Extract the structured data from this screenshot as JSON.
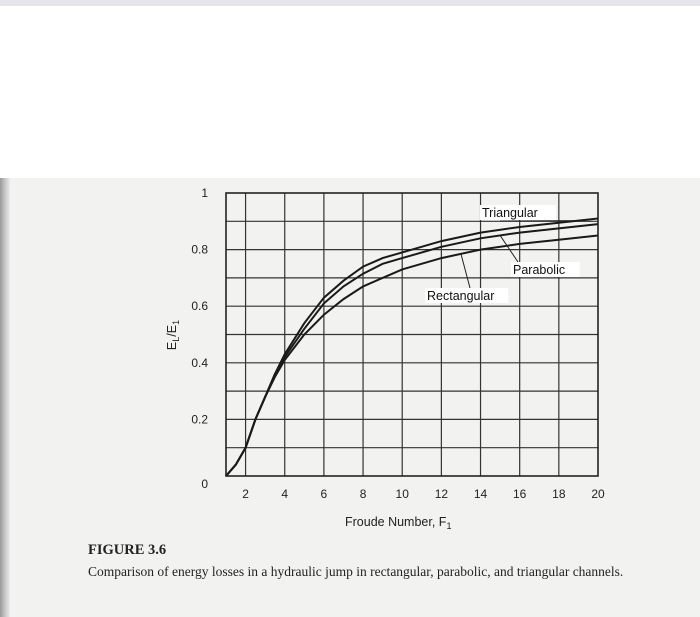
{
  "figure": {
    "number": "FIGURE 3.6",
    "caption": "Comparison of energy losses in a hydraulic jump in rectangular, parabolic, and triangular channels."
  },
  "chart_data": {
    "type": "line",
    "xlabel": "Froude Number, F",
    "xlabel_subscript": "1",
    "ylabel": "E",
    "ylabel_subscript_l": "L",
    "ylabel_slash": "/E",
    "ylabel_subscript_1": "1",
    "xlim": [
      1,
      20
    ],
    "ylim": [
      0,
      1
    ],
    "x_ticks": [
      "2",
      "4",
      "6",
      "8",
      "10",
      "12",
      "14",
      "16",
      "18",
      "20"
    ],
    "y_ticks": [
      "0",
      "0.2",
      "0.4",
      "0.6",
      "0.8",
      "1"
    ],
    "grid": true,
    "series": [
      {
        "name": "Triangular",
        "x": [
          1,
          1.5,
          2,
          2.5,
          3,
          3.5,
          4,
          5,
          6,
          7,
          8,
          9,
          10,
          12,
          14,
          16,
          18,
          20
        ],
        "y": [
          0,
          0.04,
          0.1,
          0.2,
          0.28,
          0.36,
          0.43,
          0.54,
          0.63,
          0.69,
          0.74,
          0.77,
          0.79,
          0.83,
          0.86,
          0.88,
          0.895,
          0.91
        ]
      },
      {
        "name": "Parabolic",
        "x": [
          1,
          1.5,
          2,
          2.5,
          3,
          3.5,
          4,
          5,
          6,
          7,
          8,
          9,
          10,
          12,
          14,
          16,
          18,
          20
        ],
        "y": [
          0,
          0.04,
          0.1,
          0.2,
          0.28,
          0.36,
          0.42,
          0.52,
          0.61,
          0.67,
          0.715,
          0.75,
          0.77,
          0.81,
          0.84,
          0.86,
          0.875,
          0.89
        ]
      },
      {
        "name": "Rectangular",
        "x": [
          1,
          1.5,
          2,
          2.5,
          3,
          3.5,
          4,
          5,
          6,
          7,
          8,
          9,
          10,
          12,
          14,
          16,
          18,
          20
        ],
        "y": [
          0,
          0.04,
          0.1,
          0.2,
          0.28,
          0.35,
          0.41,
          0.5,
          0.57,
          0.625,
          0.67,
          0.7,
          0.73,
          0.77,
          0.8,
          0.82,
          0.835,
          0.85
        ]
      }
    ]
  }
}
